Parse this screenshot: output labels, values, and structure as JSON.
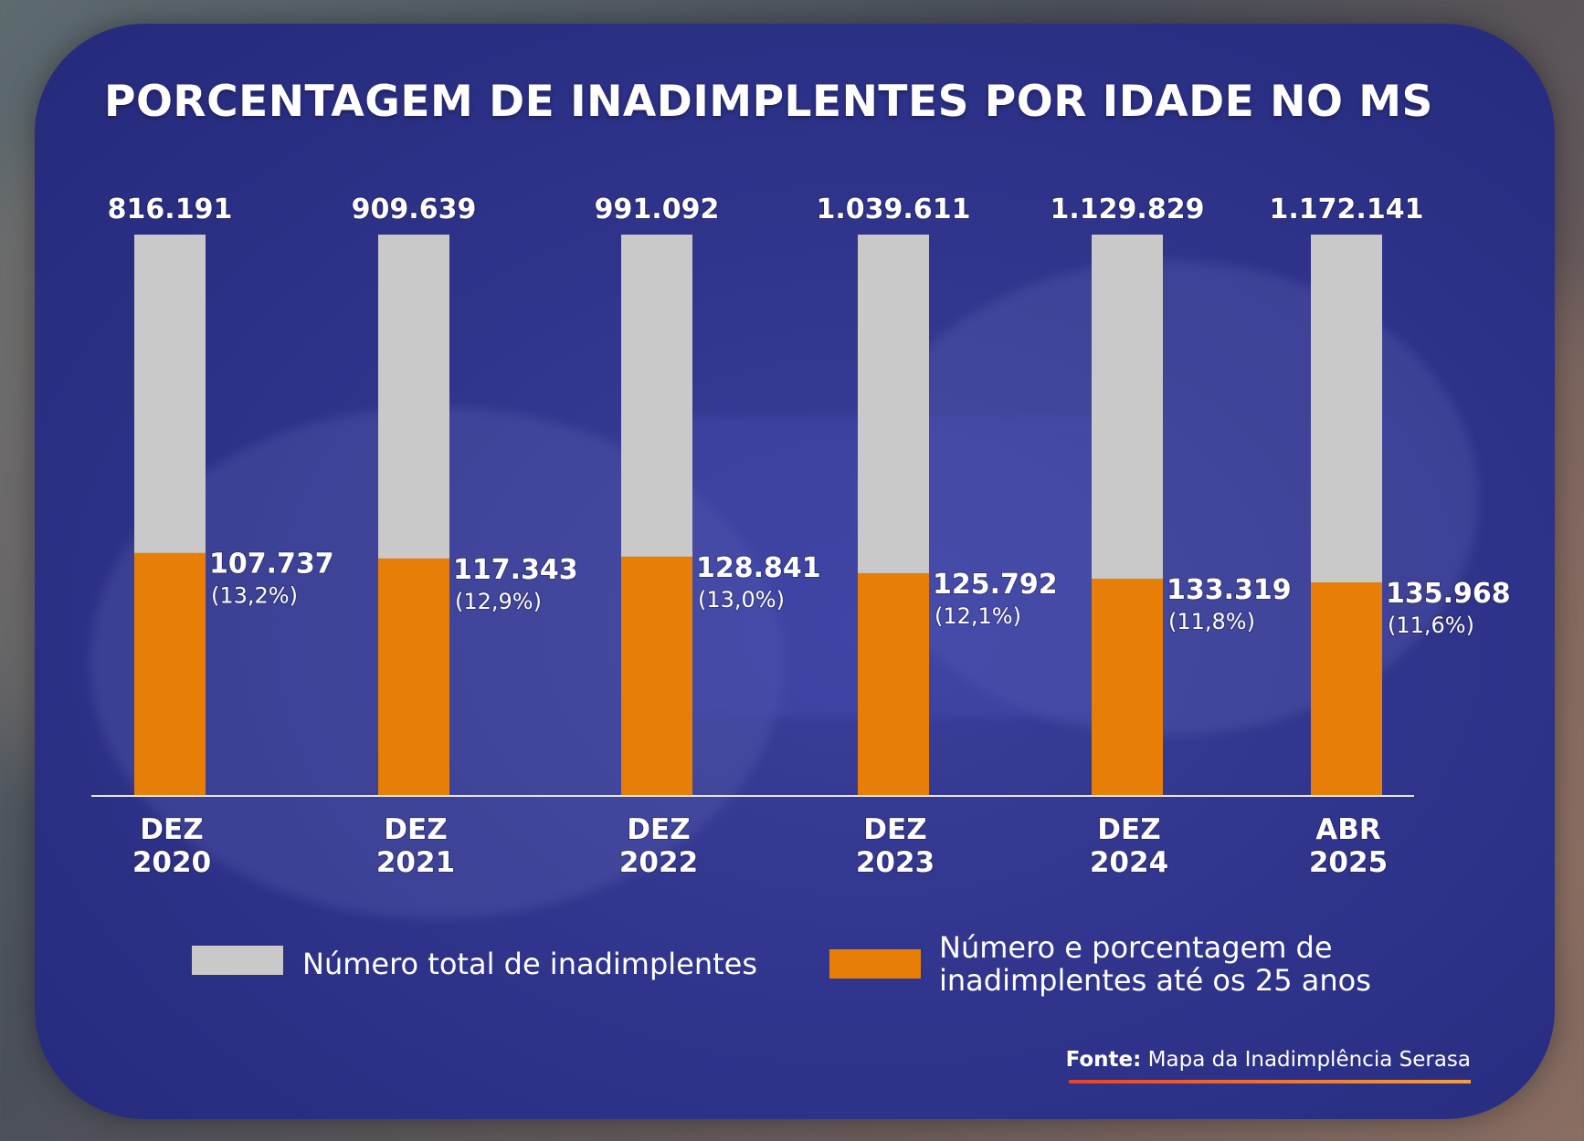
{
  "title": "PORCENTAGEM DE INADIMPLENTES POR IDADE NO MS",
  "legend": {
    "total_label": "Número total de inadimplentes",
    "young_label_line1": "Número e porcentagem de",
    "young_label_line2": "inadimplentes até os 25 anos"
  },
  "source": {
    "prefix": "Fonte:",
    "text": " Mapa da Inadimplência Serasa"
  },
  "colors": {
    "total": "#c9c9c9",
    "young": "#e67e08",
    "card": "#2e3289",
    "text": "#ffffff"
  },
  "chart_data": {
    "type": "bar",
    "categories": [
      [
        "DEZ",
        "2020"
      ],
      [
        "DEZ",
        "2021"
      ],
      [
        "DEZ",
        "2022"
      ],
      [
        "DEZ",
        "2023"
      ],
      [
        "DEZ",
        "2024"
      ],
      [
        "ABR",
        "2025"
      ]
    ],
    "series": [
      {
        "name": "Número total de inadimplentes",
        "values": [
          816191,
          909639,
          991092,
          1039611,
          1129829,
          1172141
        ],
        "labels": [
          "816.191",
          "909.639",
          "991.092",
          "1.039.611",
          "1.129.829",
          "1.172.141"
        ]
      },
      {
        "name": "Número e porcentagem de inadimplentes até os 25 anos",
        "values": [
          107737,
          117343,
          128841,
          125792,
          133319,
          135968
        ],
        "labels": [
          "107.737",
          "117.343",
          "128.841",
          "125.792",
          "133.319",
          "135.968"
        ],
        "percent_labels": [
          "(13,2%)",
          "(12,9%)",
          "(13,0%)",
          "(12,1%)",
          "(11,8%)",
          "(11,6%)"
        ],
        "percent_values": [
          13.2,
          12.9,
          13.0,
          12.1,
          11.8,
          11.6
        ]
      }
    ]
  }
}
